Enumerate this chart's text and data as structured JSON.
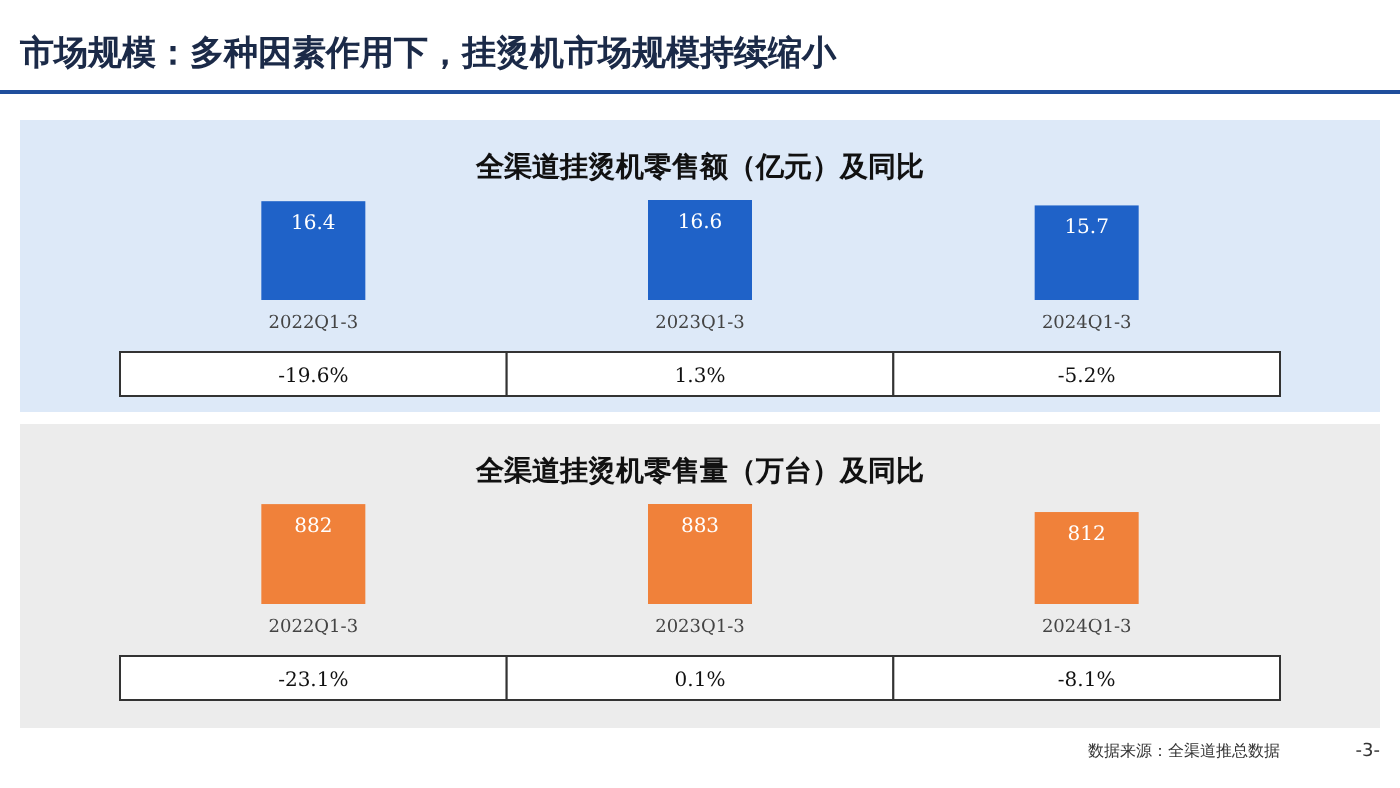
{
  "chart_data": [
    {
      "type": "other",
      "title": "市场规模：多种因素作用下，挂烫机市场规模持续缩小",
      "annotations": [
        "数据来源：全渠道推总数据",
        "-3-"
      ]
    },
    {
      "type": "bar",
      "title": "全渠道挂烫机零售额（亿元）及同比",
      "categories": [
        "2022Q1-3",
        "2023Q1-3",
        "2024Q1-3"
      ],
      "values": [
        16.4,
        16.6,
        15.7
      ],
      "color": "#1f62c8",
      "data_labels": true,
      "annotations": [
        "-19.6%",
        "1.3%",
        "-5.2%"
      ]
    },
    {
      "type": "bar",
      "title": "全渠道挂烫机零售量（万台）及同比",
      "categories": [
        "2022Q1-3",
        "2023Q1-3",
        "2024Q1-3"
      ],
      "values": [
        882,
        883,
        812
      ],
      "color": "#f0813a",
      "data_labels": true,
      "annotations": [
        "-23.1%",
        "0.1%",
        "-8.1%"
      ]
    }
  ]
}
